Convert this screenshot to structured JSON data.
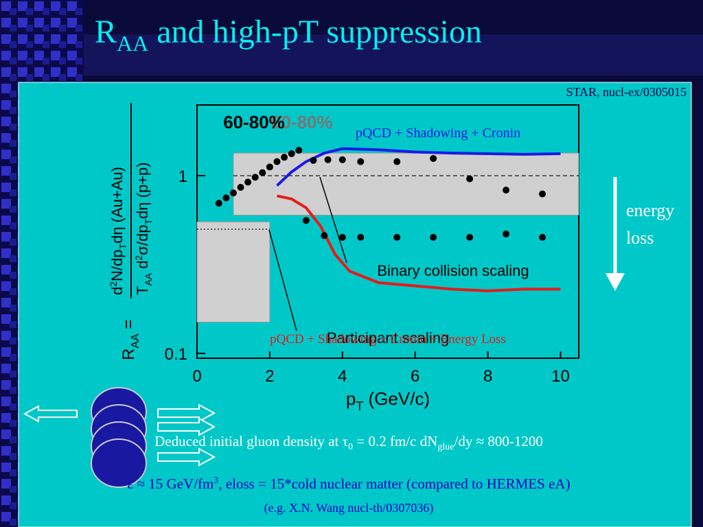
{
  "slide": {
    "title": [
      "R",
      "AA",
      " and high-pT suppression"
    ],
    "source": "STAR, nucl-ex/0305015",
    "side_label": [
      "energy",
      "loss"
    ],
    "notes": [
      [
        "Deduced initial gluon density at ",
        "τ",
        "0",
        " = 0.2 fm/c    dN",
        "glue",
        "/dy ≈ 800-1200"
      ],
      [
        "ε",
        " ≈ 15 GeV/fm",
        "3",
        ", eloss = 15*cold nuclear matter (compared to HERMES eA)"
      ],
      [
        "(e.g. X.N. Wang nucl-th/0307036)"
      ]
    ]
  },
  "chart_data": {
    "type": "scatter",
    "log_y": true,
    "centrality": "60-80%",
    "x_label": [
      "p",
      "T",
      " (GeV/c)"
    ],
    "y_label": [
      "R",
      "AA",
      " = ",
      "d",
      "2",
      "N/dp",
      "T",
      "dη  (Au+Au)",
      "T",
      "AA",
      " d",
      "2",
      "σ/dp",
      "T",
      "dη  (p+p)"
    ],
    "xlim": [
      0,
      10.5
    ],
    "ylim": [
      0.094,
      2.5
    ],
    "xticks": [
      0,
      2,
      4,
      6,
      8,
      10
    ],
    "yticks": [
      0.1,
      1
    ],
    "series": [
      {
        "color": "#000000",
        "x": [
          0.6,
          0.8,
          1.0,
          1.2,
          1.4,
          1.6,
          1.8,
          2.0,
          2.2,
          2.4,
          2.6,
          2.8,
          3.2,
          3.6,
          4.0,
          4.5,
          5.5,
          6.5,
          7.5,
          8.5,
          9.5
        ],
        "values": [
          0.7,
          0.75,
          0.8,
          0.86,
          0.92,
          0.98,
          1.04,
          1.12,
          1.2,
          1.27,
          1.33,
          1.39,
          1.22,
          1.23,
          1.23,
          1.2,
          1.2,
          1.25,
          0.96,
          0.83,
          0.79
        ]
      },
      {
        "color": "#000000",
        "x": [
          3.0,
          3.5,
          4.0,
          4.5,
          5.5,
          6.5,
          7.5,
          8.5,
          9.5
        ],
        "values": [
          0.56,
          0.46,
          0.45,
          0.45,
          0.45,
          0.45,
          0.45,
          0.47,
          0.45
        ]
      }
    ],
    "curves": [
      {
        "label": "pQCD + Shadowing + Cronin",
        "color": "#1a1ae6",
        "x": [
          2.2,
          2.6,
          3.0,
          3.5,
          4.0,
          5.0,
          6.0,
          7.0,
          8.0,
          9.0,
          10.0
        ],
        "values": [
          0.88,
          1.05,
          1.2,
          1.34,
          1.42,
          1.4,
          1.36,
          1.34,
          1.33,
          1.32,
          1.33
        ]
      },
      {
        "label": "pQCD + Shadowing + Cronin + Energy Loss",
        "color": "#e61a1a",
        "x": [
          2.2,
          2.6,
          3.0,
          3.4,
          3.8,
          4.2,
          5.0,
          6.0,
          7.0,
          8.0,
          9.0,
          10.0
        ],
        "values": [
          0.77,
          0.74,
          0.66,
          0.52,
          0.36,
          0.29,
          0.25,
          0.24,
          0.23,
          0.225,
          0.23,
          0.23
        ]
      }
    ],
    "bands": [
      {
        "label": "Binary collision scaling",
        "x": [
          1.0,
          10.5
        ],
        "range": [
          0.6,
          1.34
        ],
        "line": 1
      },
      {
        "label": "Participant scaling",
        "x": [
          0,
          2.0
        ],
        "range": [
          0.15,
          0.55
        ],
        "line": 0.5
      }
    ]
  }
}
